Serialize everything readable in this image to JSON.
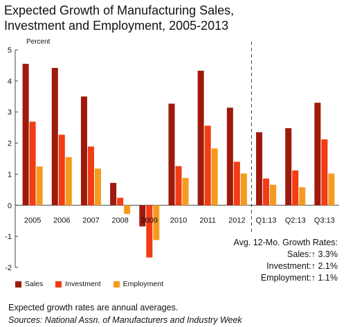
{
  "title_lines": [
    "Expected Growth of Manufacturing Sales,",
    "Investment and Employment, 2005-2013"
  ],
  "colors": {
    "sales": "#9e1a0b",
    "investment": "#f23c14",
    "employment": "#f59a1e",
    "axis": "#444444"
  },
  "chart_data": {
    "type": "bar",
    "title": "Expected Growth of Manufacturing Sales, Investment and Employment, 2005-2013",
    "ylabel": "Percent",
    "xlabel": "",
    "ylim": [
      -2,
      5
    ],
    "yticks": [
      "5",
      "4",
      "3",
      "2",
      "1",
      "0",
      "-1",
      "-2"
    ],
    "categories": [
      "2005",
      "2006",
      "2007",
      "2008",
      "2009",
      "2010",
      "2011",
      "2012",
      "Q1:13",
      "Q2:13",
      "Q3:13"
    ],
    "series": [
      {
        "name": "Sales",
        "values": [
          4.55,
          4.42,
          3.5,
          0.72,
          -0.68,
          3.27,
          4.33,
          3.14,
          2.35,
          2.48,
          3.3
        ]
      },
      {
        "name": "Investment",
        "values": [
          2.69,
          2.27,
          1.89,
          0.24,
          -1.68,
          1.26,
          2.56,
          1.4,
          0.86,
          1.12,
          2.12
        ]
      },
      {
        "name": "Employment",
        "values": [
          1.25,
          1.55,
          1.18,
          -0.28,
          -1.12,
          0.88,
          1.83,
          1.02,
          0.66,
          0.58,
          1.02
        ]
      }
    ],
    "divider_after_index": 7,
    "grid": false,
    "legend_position": "bottom-left"
  },
  "averages": {
    "heading": "Avg. 12-Mo. Growth Rates:",
    "lines": [
      "Sales:↑ 3.3%",
      "Investment:↑ 2.1%",
      "Employment:↑ 1.1%"
    ]
  },
  "legend": [
    "Sales",
    "Investment",
    "Employment"
  ],
  "footnote": "Expected growth rates are annual averages.",
  "source": "Sources: National Assn. of Manufacturers and Industry Week"
}
